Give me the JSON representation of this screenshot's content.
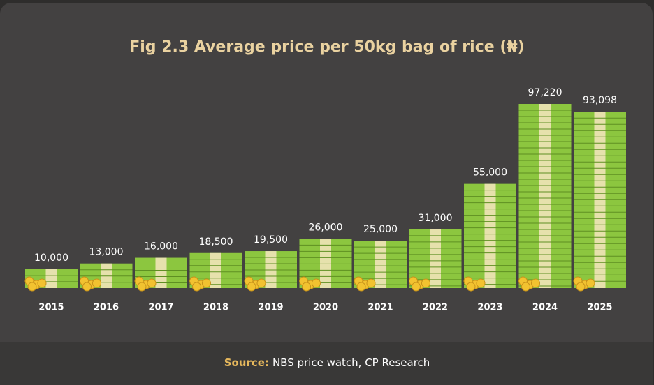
{
  "chart_data": {
    "type": "bar",
    "title": "Fig 2.3 Average price per 50kg bag of rice (₦)",
    "categories": [
      "2015",
      "2016",
      "2017",
      "2018",
      "2019",
      "2020",
      "2021",
      "2022",
      "2023",
      "2024",
      "2025"
    ],
    "values": [
      10000,
      13000,
      16000,
      18500,
      19500,
      26000,
      25000,
      31000,
      55000,
      97220,
      93098
    ],
    "value_labels": [
      "10,000",
      "13,000",
      "16,000",
      "18,500",
      "19,500",
      "26,000",
      "25,000",
      "31,000",
      "55,000",
      "97,220",
      "93,098"
    ],
    "color": "#8cc63f",
    "source_label": "Source:",
    "source": "NBS price watch, CP Research"
  }
}
